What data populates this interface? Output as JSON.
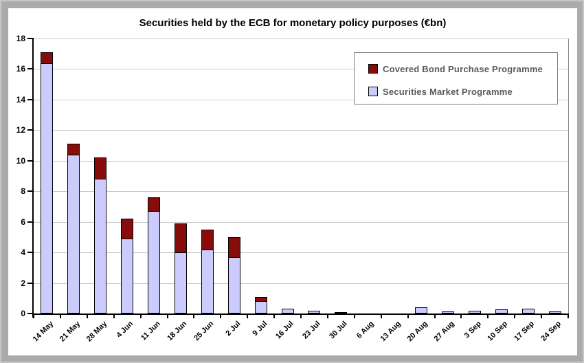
{
  "title": "Securities held by the ECB for monetary policy purposes (€bn)",
  "legend": {
    "items": [
      {
        "label": "Covered Bond Purchase Programme",
        "color": "#870D0D"
      },
      {
        "label": "Securities Market Programme",
        "color": "#CCCCFC"
      }
    ]
  },
  "chart_data": {
    "type": "bar",
    "stacked": true,
    "title": "Securities held by the ECB for monetary policy purposes (€bn)",
    "categories": [
      "14 May",
      "21 May",
      "28 May",
      "4 Jun",
      "11 Jun",
      "18 Jun",
      "25 Jun",
      "2 Jul",
      "9 Jul",
      "16 Jul",
      "23 Jul",
      "30 Jul",
      "6 Aug",
      "13 Aug",
      "20 Aug",
      "27 Aug",
      "3 Sep",
      "10 Sep",
      "17 Sep",
      "24 Sep"
    ],
    "series": [
      {
        "name": "Securities Market Programme",
        "color": "#CCCCFC",
        "values": [
          16.4,
          10.4,
          8.8,
          4.9,
          6.7,
          4.0,
          4.2,
          3.7,
          0.8,
          0.3,
          0.2,
          0.1,
          0,
          0,
          0.4,
          0.15,
          0.2,
          0.25,
          0.3,
          0.15
        ]
      },
      {
        "name": "Covered Bond Purchase Programme",
        "color": "#870D0D",
        "values": [
          0.7,
          0.7,
          1.4,
          1.3,
          0.9,
          1.9,
          1.3,
          1.3,
          0.3,
          0,
          0,
          0,
          0,
          0,
          0,
          0,
          0,
          0,
          0,
          0
        ]
      }
    ],
    "xlabel": "",
    "ylabel": "",
    "ylim": [
      0,
      18
    ],
    "ytick_step": 2,
    "y_ticks": [
      "0",
      "2",
      "4",
      "6",
      "8",
      "10",
      "12",
      "14",
      "16",
      "18"
    ],
    "grid": true,
    "legend_position": "top-right"
  }
}
